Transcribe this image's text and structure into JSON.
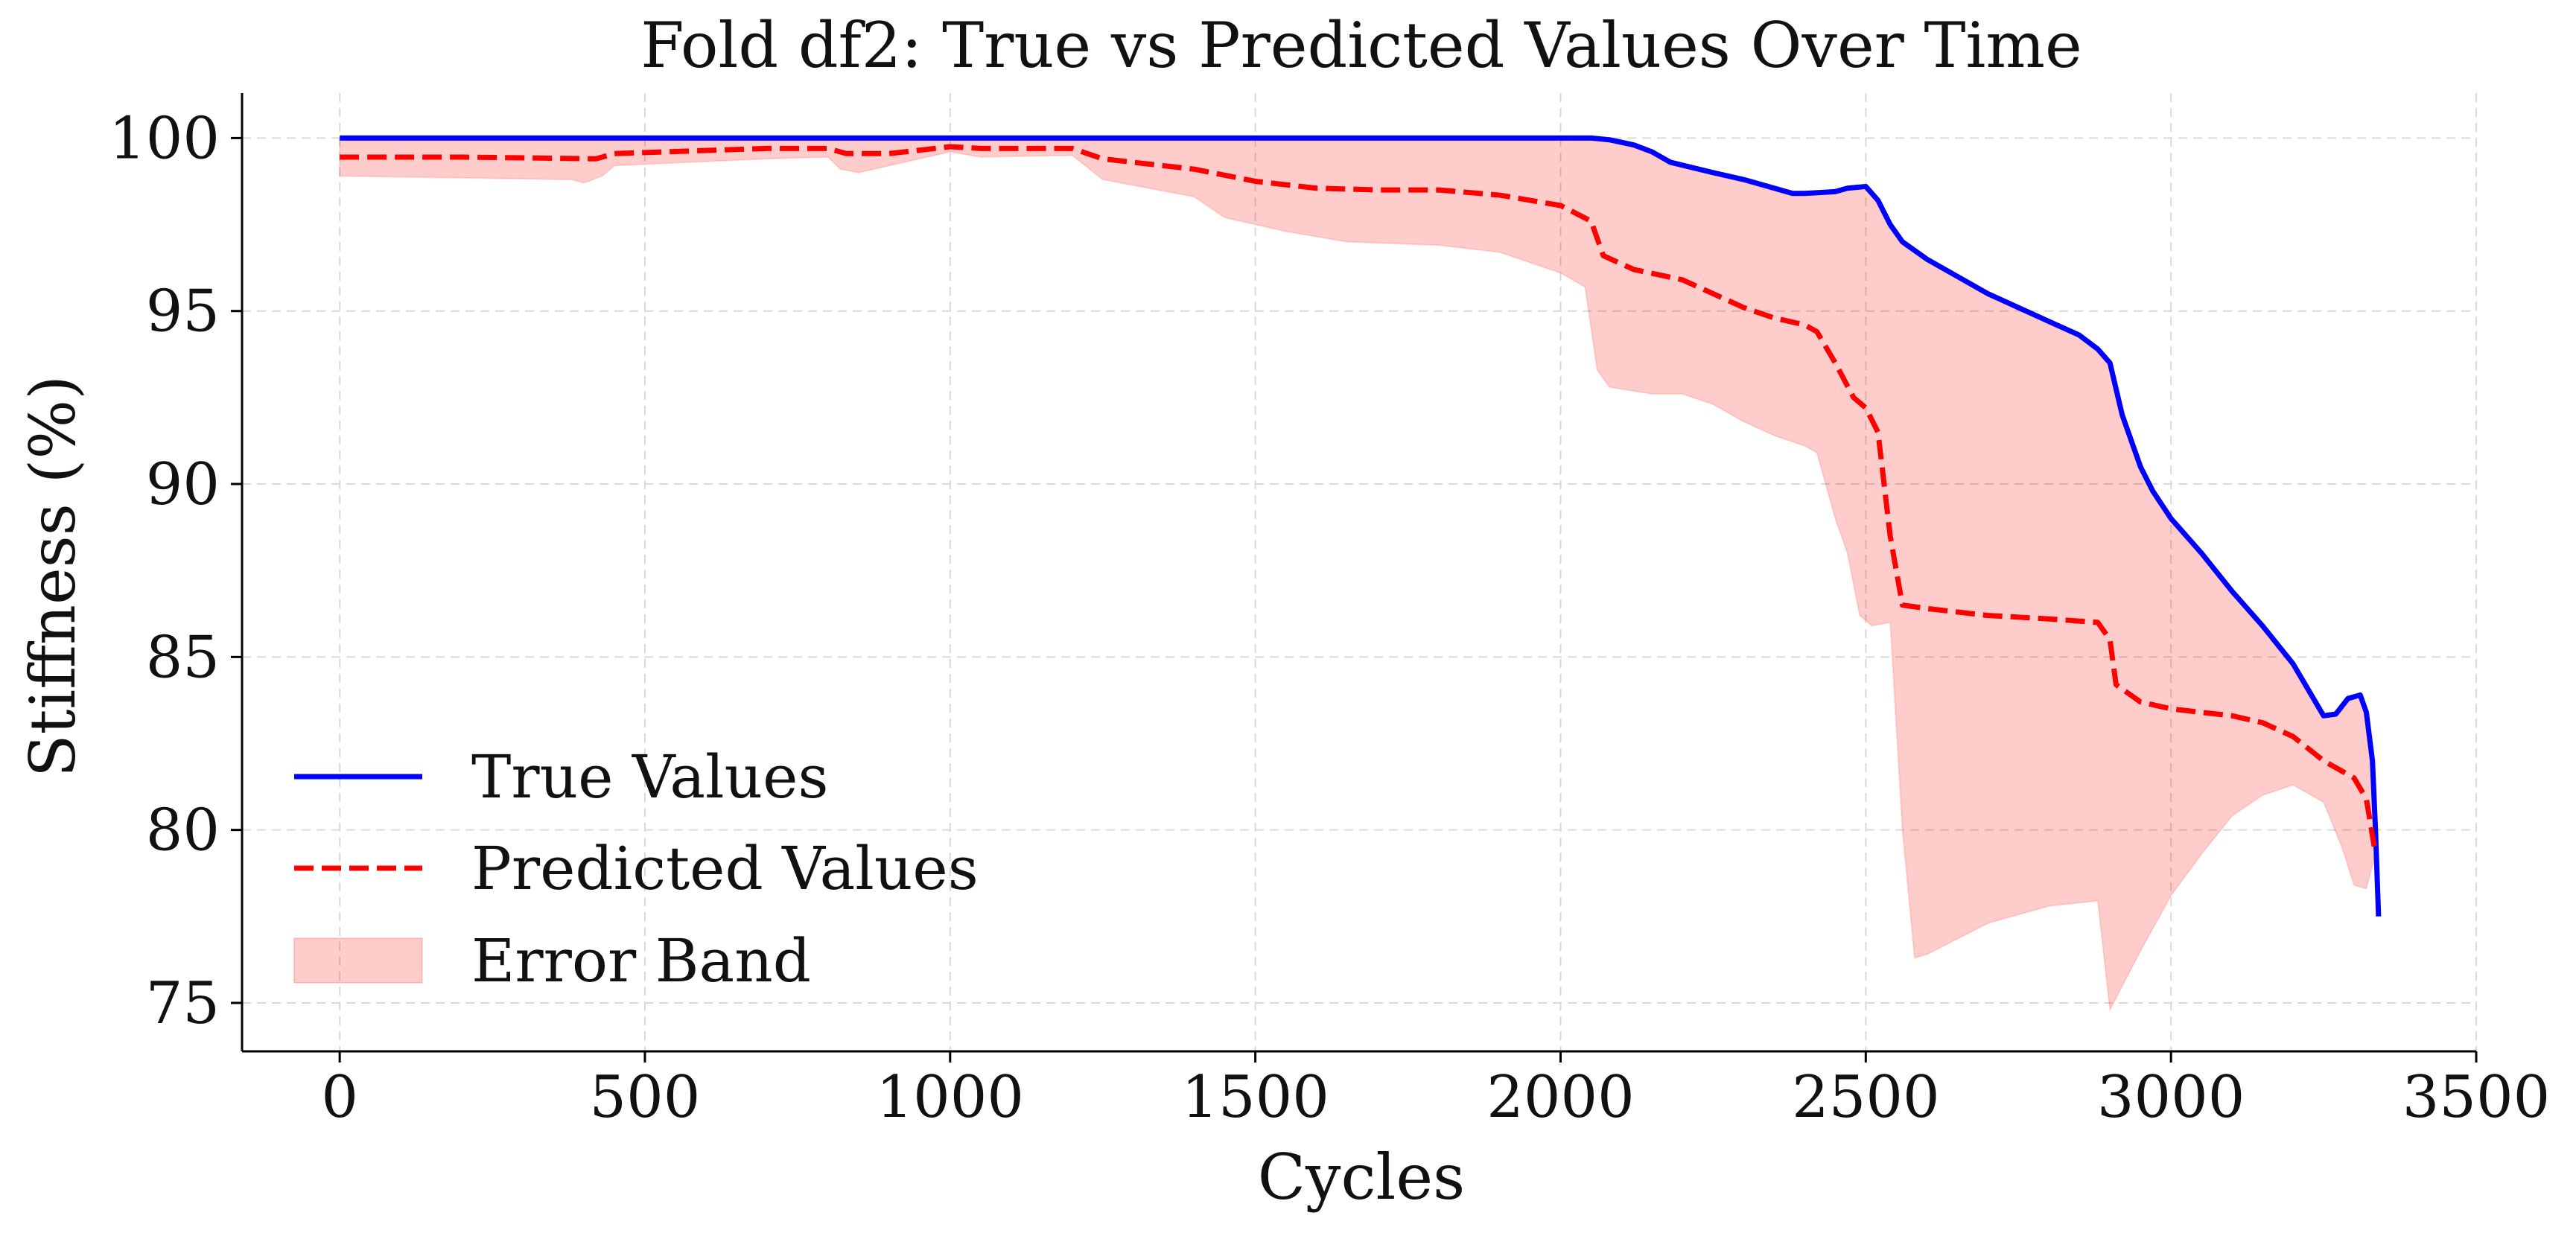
{
  "chart_data": {
    "type": "line",
    "title": "Fold df2: True vs Predicted Values Over Time",
    "xlabel": "Cycles",
    "ylabel": "Stiffness (%)",
    "xlim": [
      -160,
      3500
    ],
    "ylim": [
      73.6,
      101.3
    ],
    "xticks": [
      0,
      500,
      1000,
      1500,
      2000,
      2500,
      3000,
      3500
    ],
    "yticks": [
      75,
      80,
      85,
      90,
      95,
      100
    ],
    "grid": true,
    "legend": "lower-left",
    "series": [
      {
        "name": "True Values",
        "color": "#0000ff",
        "style": "solid",
        "points": [
          [
            0,
            100
          ],
          [
            1000,
            100
          ],
          [
            2050,
            100
          ],
          [
            2080,
            99.95
          ],
          [
            2120,
            99.8
          ],
          [
            2150,
            99.6
          ],
          [
            2180,
            99.3
          ],
          [
            2250,
            99
          ],
          [
            2300,
            98.8
          ],
          [
            2350,
            98.55
          ],
          [
            2380,
            98.4
          ],
          [
            2400,
            98.4
          ],
          [
            2450,
            98.45
          ],
          [
            2470,
            98.55
          ],
          [
            2500,
            98.6
          ],
          [
            2520,
            98.2
          ],
          [
            2540,
            97.5
          ],
          [
            2560,
            97
          ],
          [
            2600,
            96.5
          ],
          [
            2650,
            96
          ],
          [
            2700,
            95.5
          ],
          [
            2750,
            95.1
          ],
          [
            2800,
            94.7
          ],
          [
            2850,
            94.3
          ],
          [
            2880,
            93.9
          ],
          [
            2900,
            93.5
          ],
          [
            2920,
            92
          ],
          [
            2950,
            90.5
          ],
          [
            2970,
            89.8
          ],
          [
            3000,
            89
          ],
          [
            3050,
            88
          ],
          [
            3100,
            86.9
          ],
          [
            3150,
            85.9
          ],
          [
            3200,
            84.8
          ],
          [
            3230,
            83.9
          ],
          [
            3250,
            83.3
          ],
          [
            3270,
            83.35
          ],
          [
            3290,
            83.8
          ],
          [
            3310,
            83.9
          ],
          [
            3320,
            83.4
          ],
          [
            3330,
            82
          ],
          [
            3335,
            80
          ],
          [
            3340,
            77.5
          ]
        ]
      },
      {
        "name": "Predicted Values",
        "color": "#ff0000",
        "style": "dashed",
        "points": [
          [
            0,
            99.45
          ],
          [
            200,
            99.45
          ],
          [
            420,
            99.4
          ],
          [
            450,
            99.55
          ],
          [
            700,
            99.7
          ],
          [
            800,
            99.7
          ],
          [
            830,
            99.55
          ],
          [
            900,
            99.55
          ],
          [
            1000,
            99.75
          ],
          [
            1050,
            99.7
          ],
          [
            1200,
            99.7
          ],
          [
            1250,
            99.4
          ],
          [
            1400,
            99.1
          ],
          [
            1500,
            98.75
          ],
          [
            1600,
            98.55
          ],
          [
            1700,
            98.5
          ],
          [
            1800,
            98.5
          ],
          [
            1900,
            98.35
          ],
          [
            2000,
            98.05
          ],
          [
            2050,
            97.6
          ],
          [
            2070,
            96.6
          ],
          [
            2120,
            96.2
          ],
          [
            2200,
            95.9
          ],
          [
            2250,
            95.5
          ],
          [
            2300,
            95.1
          ],
          [
            2350,
            94.8
          ],
          [
            2400,
            94.6
          ],
          [
            2420,
            94.4
          ],
          [
            2450,
            93.5
          ],
          [
            2480,
            92.5
          ],
          [
            2500,
            92.2
          ],
          [
            2520,
            91.5
          ],
          [
            2540,
            88.5
          ],
          [
            2560,
            86.5
          ],
          [
            2600,
            86.4
          ],
          [
            2700,
            86.2
          ],
          [
            2800,
            86.1
          ],
          [
            2880,
            86
          ],
          [
            2900,
            85.5
          ],
          [
            2910,
            84.2
          ],
          [
            2950,
            83.7
          ],
          [
            3000,
            83.5
          ],
          [
            3100,
            83.3
          ],
          [
            3150,
            83.1
          ],
          [
            3200,
            82.7
          ],
          [
            3250,
            82
          ],
          [
            3300,
            81.5
          ],
          [
            3320,
            80.9
          ],
          [
            3335,
            79.3
          ]
        ]
      }
    ],
    "band": {
      "name": "Error Band",
      "color": "#ff0000",
      "opacity": 0.2,
      "upper": [
        [
          0,
          100
        ],
        [
          1000,
          100
        ],
        [
          2050,
          100
        ],
        [
          2080,
          99.95
        ],
        [
          2120,
          99.8
        ],
        [
          2150,
          99.6
        ],
        [
          2180,
          99.3
        ],
        [
          2250,
          99
        ],
        [
          2300,
          98.8
        ],
        [
          2350,
          98.55
        ],
        [
          2380,
          98.4
        ],
        [
          2400,
          98.4
        ],
        [
          2450,
          98.45
        ],
        [
          2470,
          98.55
        ],
        [
          2500,
          98.6
        ],
        [
          2520,
          98.2
        ],
        [
          2540,
          97.5
        ],
        [
          2560,
          97
        ],
        [
          2600,
          96.5
        ],
        [
          2650,
          96
        ],
        [
          2700,
          95.5
        ],
        [
          2750,
          95.1
        ],
        [
          2800,
          94.7
        ],
        [
          2850,
          94.3
        ],
        [
          2880,
          93.9
        ],
        [
          2900,
          93.5
        ],
        [
          2920,
          92
        ],
        [
          2950,
          90.5
        ],
        [
          2970,
          89.8
        ],
        [
          3000,
          89
        ],
        [
          3050,
          88
        ],
        [
          3100,
          86.9
        ],
        [
          3150,
          85.9
        ],
        [
          3200,
          84.8
        ],
        [
          3230,
          83.9
        ],
        [
          3250,
          83.3
        ],
        [
          3270,
          83.35
        ],
        [
          3290,
          83.8
        ],
        [
          3310,
          83.9
        ],
        [
          3320,
          83.4
        ],
        [
          3335,
          80
        ]
      ],
      "lower": [
        [
          0,
          98.9
        ],
        [
          200,
          98.85
        ],
        [
          380,
          98.8
        ],
        [
          400,
          98.7
        ],
        [
          430,
          98.9
        ],
        [
          450,
          99.2
        ],
        [
          700,
          99.4
        ],
        [
          800,
          99.45
        ],
        [
          820,
          99.1
        ],
        [
          850,
          99
        ],
        [
          950,
          99.4
        ],
        [
          1000,
          99.6
        ],
        [
          1050,
          99.45
        ],
        [
          1200,
          99.5
        ],
        [
          1250,
          98.8
        ],
        [
          1400,
          98.3
        ],
        [
          1450,
          97.7
        ],
        [
          1550,
          97.3
        ],
        [
          1650,
          97
        ],
        [
          1800,
          96.9
        ],
        [
          1900,
          96.7
        ],
        [
          2000,
          96.1
        ],
        [
          2040,
          95.7
        ],
        [
          2060,
          93.3
        ],
        [
          2080,
          92.8
        ],
        [
          2150,
          92.6
        ],
        [
          2200,
          92.6
        ],
        [
          2250,
          92.3
        ],
        [
          2300,
          91.8
        ],
        [
          2350,
          91.4
        ],
        [
          2400,
          91.1
        ],
        [
          2420,
          90.9
        ],
        [
          2450,
          89
        ],
        [
          2470,
          88
        ],
        [
          2490,
          86.2
        ],
        [
          2510,
          85.9
        ],
        [
          2540,
          86
        ],
        [
          2560,
          80
        ],
        [
          2580,
          76.3
        ],
        [
          2600,
          76.4
        ],
        [
          2700,
          77.3
        ],
        [
          2800,
          77.8
        ],
        [
          2880,
          77.95
        ],
        [
          2900,
          74.8
        ],
        [
          2950,
          76.5
        ],
        [
          3000,
          78.1
        ],
        [
          3050,
          79.3
        ],
        [
          3100,
          80.4
        ],
        [
          3150,
          81
        ],
        [
          3200,
          81.3
        ],
        [
          3250,
          80.8
        ],
        [
          3280,
          79.5
        ],
        [
          3300,
          78.4
        ],
        [
          3320,
          78.3
        ],
        [
          3335,
          79.3
        ]
      ]
    }
  }
}
